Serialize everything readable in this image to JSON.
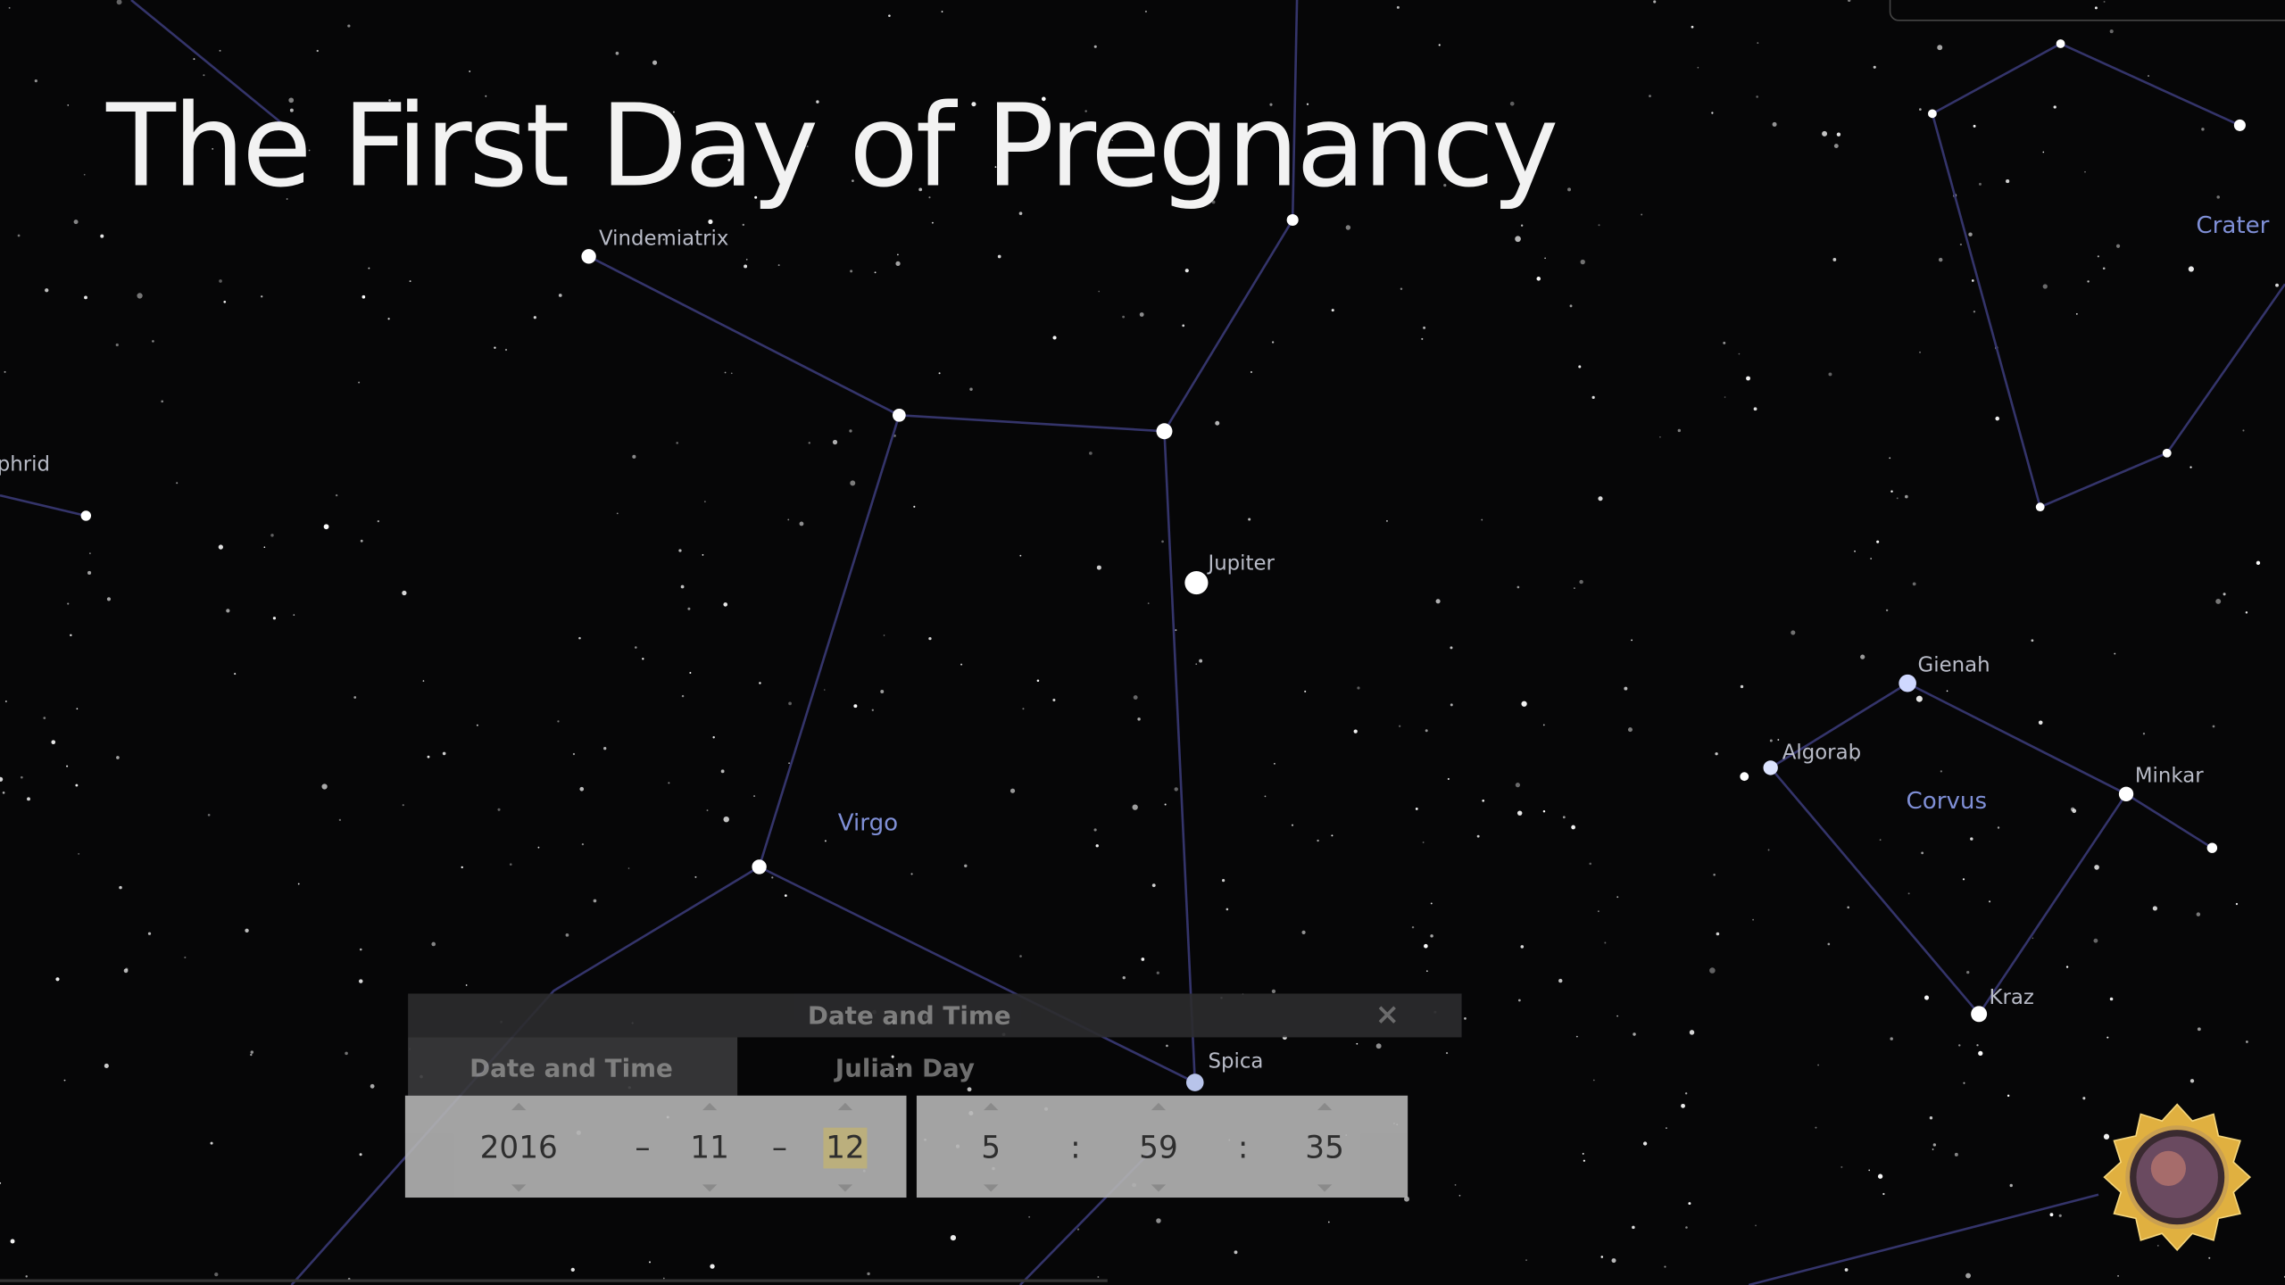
{
  "slide": {
    "title": "The First Day of Pregnancy"
  },
  "sky": {
    "stars": [
      "Vindemiatrix",
      "phrid",
      "Jupiter",
      "Spica",
      "Gienah",
      "Algorab",
      "Minkar",
      "Kraz"
    ],
    "constellations": [
      "Virgo",
      "Corvus",
      "Crater"
    ]
  },
  "dialog": {
    "title": "Date and Time",
    "tabs": [
      "Date and Time",
      "Julian Day"
    ],
    "date": {
      "year": "2016",
      "month": "11",
      "day": "12",
      "separator": "–"
    },
    "time": {
      "hour": "5",
      "minute": "59",
      "second": "35",
      "separator": ":"
    }
  }
}
